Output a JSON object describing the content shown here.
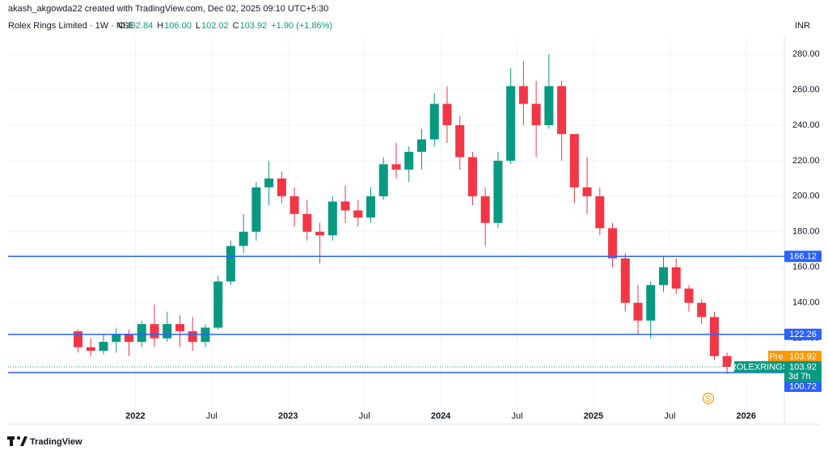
{
  "attribution": "akash_akgowda22 created with TradingView.com, Dec 02, 2025 09:10 UTC+5:30",
  "logo": "TradingView",
  "chart_data": {
    "type": "candlestick",
    "title": "Rolex Rings Limited · 1W · NSE",
    "ohlc_header": [
      {
        "label": "O",
        "value": "102.84"
      },
      {
        "label": "H",
        "value": "106.00"
      },
      {
        "label": "L",
        "value": "102.02"
      },
      {
        "label": "C",
        "value": "103.92"
      }
    ],
    "change": "+1.90 (+1.86%)",
    "currency": "INR",
    "up_color": "#089981",
    "down_color": "#f23645",
    "grid": true,
    "x": [
      "2021-08",
      "2021-09",
      "2021-10",
      "2021-11",
      "2021-12",
      "2022-01",
      "2022-02",
      "2022-03",
      "2022-04",
      "2022-05",
      "2022-06",
      "2022-07",
      "2022-08",
      "2022-09",
      "2022-10",
      "2022-11",
      "2022-12",
      "2023-01",
      "2023-02",
      "2023-03",
      "2023-04",
      "2023-05",
      "2023-06",
      "2023-07",
      "2023-08",
      "2023-09",
      "2023-10",
      "2023-11",
      "2023-12",
      "2024-01",
      "2024-02",
      "2024-03",
      "2024-04",
      "2024-05",
      "2024-06",
      "2024-07",
      "2024-08",
      "2024-09",
      "2024-10",
      "2024-11",
      "2024-12",
      "2025-01",
      "2025-02",
      "2025-03",
      "2025-04",
      "2025-05",
      "2025-06",
      "2025-07",
      "2025-08",
      "2025-09",
      "2025-10",
      "2025-11"
    ],
    "open": [
      124,
      115,
      113,
      118,
      122,
      118,
      128,
      120,
      128,
      124,
      118,
      126,
      152,
      172,
      180,
      205,
      210,
      200,
      190,
      180,
      178,
      197,
      192,
      188,
      200,
      218,
      215,
      225,
      232,
      252,
      240,
      222,
      200,
      185,
      220,
      262,
      252,
      240,
      262,
      235,
      205,
      200,
      182,
      165,
      140,
      130,
      150,
      160,
      148,
      140,
      132,
      110
    ],
    "high": [
      125,
      120,
      122,
      126,
      125,
      130,
      139,
      135,
      133,
      132,
      128,
      155,
      175,
      190,
      208,
      220,
      214,
      205,
      198,
      185,
      200,
      206,
      198,
      205,
      222,
      230,
      228,
      238,
      258,
      262,
      245,
      225,
      205,
      225,
      272,
      276,
      265,
      280,
      265,
      235,
      222,
      205,
      185,
      168,
      150,
      152,
      166,
      165,
      150,
      142,
      135,
      112
    ],
    "low": [
      112,
      110,
      111,
      112,
      110,
      115,
      115,
      118,
      115,
      113,
      115,
      125,
      150,
      168,
      175,
      195,
      196,
      183,
      175,
      162,
      175,
      185,
      183,
      185,
      198,
      210,
      208,
      215,
      228,
      230,
      215,
      195,
      172,
      182,
      218,
      240,
      222,
      238,
      220,
      196,
      190,
      178,
      160,
      135,
      122,
      120,
      146,
      145,
      135,
      128,
      108,
      100
    ],
    "close": [
      115,
      113,
      118,
      122,
      118,
      128,
      120,
      128,
      124,
      118,
      126,
      152,
      172,
      180,
      205,
      210,
      200,
      190,
      180,
      178,
      197,
      192,
      188,
      200,
      218,
      215,
      225,
      232,
      252,
      240,
      222,
      200,
      185,
      220,
      262,
      252,
      240,
      262,
      235,
      205,
      200,
      182,
      165,
      140,
      130,
      150,
      160,
      148,
      140,
      132,
      110,
      103.92
    ],
    "xlim": [
      "2021-03",
      "2026-04"
    ],
    "xticks": [
      {
        "value": "2022-01",
        "label": "2022"
      },
      {
        "value": "2022-07",
        "label": "Jul"
      },
      {
        "value": "2023-01",
        "label": "2023"
      },
      {
        "value": "2023-07",
        "label": "Jul"
      },
      {
        "value": "2024-01",
        "label": "2024"
      },
      {
        "value": "2024-07",
        "label": "Jul"
      },
      {
        "value": "2025-01",
        "label": "2025"
      },
      {
        "value": "2025-07",
        "label": "Jul"
      },
      {
        "value": "2026-01",
        "label": "2026"
      }
    ],
    "ylim": [
      83,
      290
    ],
    "yticks": [
      {
        "value": 100,
        "label": "100.00"
      },
      {
        "value": 120,
        "label": "120.00"
      },
      {
        "value": 140,
        "label": "140.00"
      },
      {
        "value": 160,
        "label": "160.00"
      },
      {
        "value": 180,
        "label": "180.00"
      },
      {
        "value": 200,
        "label": "200.00"
      },
      {
        "value": 220,
        "label": "220.00"
      },
      {
        "value": 240,
        "label": "240.00"
      },
      {
        "value": 260,
        "label": "260.00"
      },
      {
        "value": 280,
        "label": "280.00"
      }
    ],
    "hlines": [
      {
        "value": 166.12,
        "color": "#2962ff"
      },
      {
        "value": 122.26,
        "color": "#2962ff"
      },
      {
        "value": 100.72,
        "color": "#2962ff"
      }
    ],
    "pre_tag": {
      "label": "Pre",
      "value": 103.92,
      "color": "#ff9800"
    },
    "last_tag": {
      "symbol": "ROLEXRINGS",
      "value": 103.92,
      "countdown": "3d 7h",
      "color": "#089981"
    }
  }
}
